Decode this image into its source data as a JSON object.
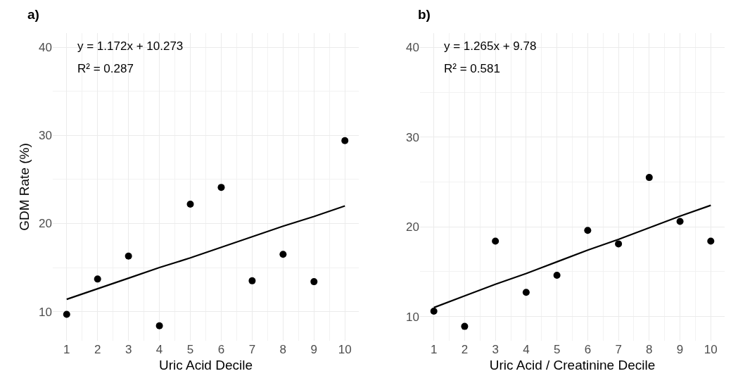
{
  "chart_data": [
    {
      "type": "scatter",
      "title": "a)",
      "xlabel": "Uric Acid Decile",
      "ylabel": "GDM Rate (%)",
      "x": [
        1,
        2,
        3,
        4,
        5,
        6,
        7,
        8,
        9,
        10
      ],
      "series": [
        {
          "color": "#000000",
          "values": [
            9.7,
            13.7,
            16.3,
            8.4,
            22.2,
            24.1,
            13.5,
            16.5,
            13.4,
            29.4
          ],
          "marker": "circle"
        },
        {
          "type": "line",
          "color": "#000000",
          "x": [
            1,
            2,
            3,
            4,
            5,
            6,
            7,
            8,
            9,
            10
          ],
          "values": [
            11.4,
            12.6,
            13.8,
            15.0,
            16.1,
            17.3,
            18.5,
            19.7,
            20.8,
            22.0
          ]
        }
      ],
      "annotations": [
        "y = 1.172x + 10.273",
        "R² = 0.287"
      ],
      "xlim": [
        0.55,
        10.45
      ],
      "ylim": [
        6.7,
        41.6
      ],
      "xticks": [
        1,
        2,
        3,
        4,
        5,
        6,
        7,
        8,
        9,
        10
      ],
      "yticks": [
        10,
        20,
        30,
        40
      ],
      "grid": true
    },
    {
      "type": "scatter",
      "title": "b)",
      "xlabel": "Uric Acid / Creatinine Decile",
      "x": [
        1,
        2,
        3,
        4,
        5,
        6,
        7,
        8,
        9,
        10
      ],
      "series": [
        {
          "color": "#000000",
          "values": [
            10.6,
            8.9,
            18.4,
            12.7,
            14.6,
            19.6,
            18.1,
            25.5,
            20.6,
            18.4
          ],
          "marker": "circle"
        },
        {
          "type": "line",
          "color": "#000000",
          "x": [
            1,
            2,
            3,
            4,
            5,
            6,
            7,
            8,
            9,
            10
          ],
          "values": [
            11.0,
            12.3,
            13.6,
            14.8,
            16.1,
            17.4,
            18.6,
            19.9,
            21.2,
            22.4
          ]
        }
      ],
      "annotations": [
        "y = 1.265x + 9.78",
        "R² = 0.581"
      ],
      "xlim": [
        0.55,
        10.45
      ],
      "ylim": [
        7.3,
        41.6
      ],
      "xticks": [
        1,
        2,
        3,
        4,
        5,
        6,
        7,
        8,
        9,
        10
      ],
      "yticks": [
        10,
        20,
        30,
        40
      ],
      "grid": true
    }
  ]
}
